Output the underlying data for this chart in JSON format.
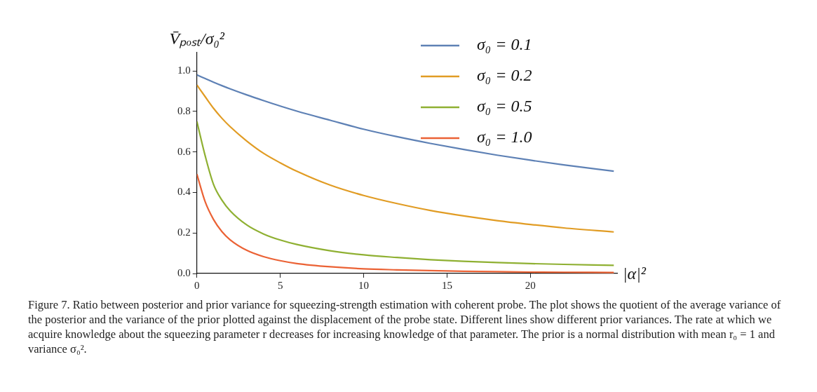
{
  "chart_data": {
    "type": "line",
    "xlabel": "|α|²",
    "ylabel": "V̄ₚₒₛₜ/σ₀²",
    "x": [
      0,
      0.5,
      1,
      1.5,
      2,
      3,
      4,
      5,
      6,
      8,
      10,
      12,
      14,
      16,
      18,
      20,
      22,
      25
    ],
    "series": [
      {
        "name": "σ₀ = 0.1",
        "color": "#5e81b5",
        "values": [
          0.98,
          0.962,
          0.944,
          0.927,
          0.911,
          0.881,
          0.853,
          0.826,
          0.801,
          0.756,
          0.712,
          0.675,
          0.642,
          0.612,
          0.584,
          0.559,
          0.536,
          0.505
        ]
      },
      {
        "name": "σ₀ = 0.2",
        "color": "#e19c24",
        "values": [
          0.93,
          0.872,
          0.815,
          0.766,
          0.724,
          0.653,
          0.593,
          0.546,
          0.504,
          0.436,
          0.385,
          0.345,
          0.311,
          0.284,
          0.261,
          0.242,
          0.225,
          0.205
        ]
      },
      {
        "name": "σ₀ = 0.5",
        "color": "#8fb032",
        "values": [
          0.75,
          0.58,
          0.439,
          0.362,
          0.309,
          0.239,
          0.195,
          0.165,
          0.143,
          0.112,
          0.092,
          0.079,
          0.068,
          0.06,
          0.054,
          0.049,
          0.045,
          0.04
        ]
      },
      {
        "name": "σ₀ = 1.0",
        "color": "#eb6235",
        "values": [
          0.49,
          0.353,
          0.266,
          0.207,
          0.166,
          0.114,
          0.083,
          0.063,
          0.049,
          0.033,
          0.023,
          0.018,
          0.014,
          0.011,
          0.009,
          0.007,
          0.006,
          0.005
        ]
      }
    ],
    "xlim": [
      0,
      25.2
    ],
    "ylim": [
      0,
      1.09
    ],
    "xticks": [
      0,
      5,
      10,
      15,
      20
    ],
    "yticks": [
      {
        "value": 0,
        "label": "0.0"
      },
      {
        "value": 0.2,
        "label": "0.2"
      },
      {
        "value": 0.4,
        "label": "0.4"
      },
      {
        "value": 0.6,
        "label": "0.6"
      },
      {
        "value": 0.8,
        "label": "0.8"
      },
      {
        "value": 1,
        "label": "1.0"
      }
    ],
    "legend": "top right",
    "marker": "none",
    "line_style": "solid",
    "grid": false,
    "annotations": [
      "Figure 7.  Ratio between posterior and prior variance for squeezing-strength estimation with coherent probe. The plot shows the quotient of the average variance of the posterior and the variance of the prior plotted against the displacement of the probe state. Different lines show different prior variances. The rate at which we acquire knowledge about the squeezing parameter r decreases for increasing knowledge of that parameter. The prior is a normal distribution with mean r₀ = 1 and variance σ₀²."
    ]
  }
}
